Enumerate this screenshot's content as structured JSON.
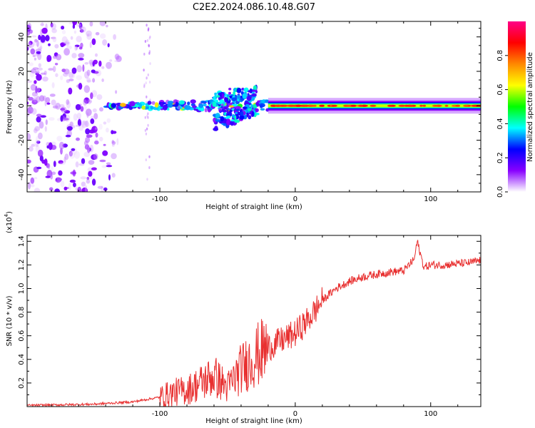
{
  "title": "C2E2.2024.086.10.48.G07",
  "chart_data": [
    {
      "type": "heatmap",
      "name": "spectrogram",
      "xlabel": "Height of straight line (km)",
      "ylabel": "Frequency (Hz)",
      "xlim": [
        -198,
        137
      ],
      "ylim": [
        -50,
        49
      ],
      "xticks": [
        -100,
        0,
        100
      ],
      "yticks": [
        -40,
        -20,
        0,
        20,
        40
      ],
      "colorbar": {
        "label": "Normalized spectral amplitude",
        "range": [
          0,
          1
        ],
        "ticks": [
          "0.0",
          "0.2",
          "0.4",
          "0.6",
          "0.8"
        ],
        "colors": [
          "#ffffff",
          "#8800ff",
          "#0000ff",
          "#00ffff",
          "#00ff00",
          "#ffff00",
          "#ff8800",
          "#ff0000",
          "#ff0088"
        ]
      },
      "features": [
        {
          "desc": "scattered noise",
          "x_range": [
            -198,
            -130
          ],
          "freq_range": [
            -50,
            49
          ],
          "amplitude": 0.05
        },
        {
          "desc": "faint column",
          "x_range": [
            -112,
            -107
          ],
          "freq_range": [
            -50,
            49
          ],
          "amplitude": 0.03
        },
        {
          "desc": "carrier onset",
          "x_range": [
            -140,
            -20
          ],
          "freq": 0,
          "amplitude": 0.3
        },
        {
          "desc": "diverging branch",
          "x_range": [
            -60,
            -28
          ],
          "freq_range": [
            -14,
            12
          ],
          "amplitude": 0.25
        },
        {
          "desc": "strong carrier",
          "x_range": [
            -20,
            137
          ],
          "freq": 0,
          "amplitude": 0.85
        }
      ]
    },
    {
      "type": "line",
      "name": "snr",
      "xlabel": "Height of straight line (km)",
      "ylabel": "SNR (10 * v/v)",
      "yscale_label": "(x10",
      "yscale_exp": "4",
      "xlim": [
        -198,
        137
      ],
      "ylim": [
        0,
        1.45
      ],
      "xticks": [
        -100,
        0,
        100
      ],
      "yticks": [
        "0.2",
        "0.4",
        "0.6",
        "0.8",
        "1.0",
        "1.2",
        "1.4"
      ],
      "color": "#e83030",
      "x": [
        -198,
        -150,
        -120,
        -100,
        -90,
        -80,
        -70,
        -60,
        -50,
        -40,
        -30,
        -20,
        -10,
        0,
        10,
        20,
        30,
        40,
        50,
        60,
        70,
        80,
        88,
        90,
        95,
        100,
        110,
        120,
        130,
        137
      ],
      "y": [
        0.01,
        0.02,
        0.04,
        0.08,
        0.12,
        0.14,
        0.2,
        0.26,
        0.16,
        0.32,
        0.42,
        0.5,
        0.56,
        0.62,
        0.74,
        0.9,
        1.0,
        1.06,
        1.1,
        1.12,
        1.14,
        1.15,
        1.25,
        1.4,
        1.18,
        1.2,
        1.2,
        1.21,
        1.22,
        1.24
      ]
    }
  ]
}
